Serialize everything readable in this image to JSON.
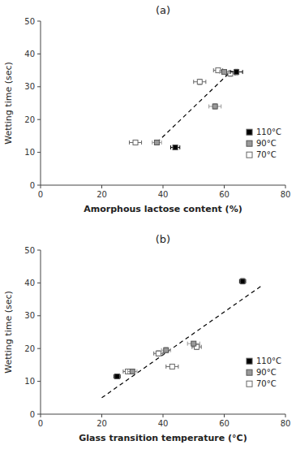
{
  "chart_data": [
    {
      "type": "scatter",
      "title": "(a)",
      "x_label": "Amorphous lactose content (%)",
      "y_label": "Wetting time (sec)",
      "xlim": [
        0,
        80
      ],
      "ylim": [
        0,
        50
      ],
      "xticks": [
        0,
        20,
        40,
        60,
        80
      ],
      "yticks": [
        0,
        10,
        20,
        30,
        40,
        50
      ],
      "grid": false,
      "legend": "lower right",
      "series": [
        {
          "name": "110°C",
          "color": "#000000",
          "marker": "square",
          "x": [
            44.0,
            64.0
          ],
          "values": [
            11.5,
            34.5
          ],
          "xerr": [
            1.5,
            2.0
          ],
          "yerr": [
            0.5,
            0.8
          ]
        },
        {
          "name": "90°C",
          "color": "#999999",
          "marker": "square",
          "x": [
            38.0,
            57.0,
            60.0
          ],
          "values": [
            13.0,
            24.0,
            34.5
          ],
          "xerr": [
            1.5,
            2.0,
            1.5
          ],
          "yerr": [
            0.5,
            0.8,
            0.5
          ]
        },
        {
          "name": "70°C",
          "color": "#666666",
          "marker": "open-square",
          "x": [
            31.0,
            52.0,
            58.0,
            62.0
          ],
          "values": [
            13.0,
            31.5,
            35.0,
            34.0
          ],
          "xerr": [
            2.0,
            2.0,
            1.5,
            1.5
          ],
          "yerr": [
            0.5,
            0.8,
            0.5,
            0.8
          ]
        },
        {
          "type": "line",
          "color": "#000000",
          "line_style": "dashed",
          "x": [
            38.0,
            62.0
          ],
          "values": [
            13.0,
            34.5
          ]
        }
      ]
    },
    {
      "type": "scatter",
      "title": "(b)",
      "x_label": "Glass transition temperature (°C)",
      "y_label": "Wetting time (sec)",
      "xlim": [
        0,
        80
      ],
      "ylim": [
        0,
        50
      ],
      "xticks": [
        0,
        20,
        40,
        60,
        80
      ],
      "yticks": [
        0,
        10,
        20,
        30,
        40,
        50
      ],
      "grid": false,
      "legend": "lower right",
      "series": [
        {
          "name": "110°C",
          "color": "#000000",
          "marker": "square",
          "x": [
            25.0,
            66.0
          ],
          "values": [
            11.5,
            40.5
          ],
          "xerr": [
            1.0,
            1.0
          ],
          "yerr": [
            0.5,
            0.8
          ]
        },
        {
          "name": "90°C",
          "color": "#999999",
          "marker": "square",
          "x": [
            30.0,
            41.0,
            50.0
          ],
          "values": [
            13.0,
            19.5,
            21.5
          ],
          "xerr": [
            1.5,
            1.5,
            2.0
          ],
          "yerr": [
            0.5,
            0.8,
            0.5
          ]
        },
        {
          "name": "70°C",
          "color": "#666666",
          "marker": "open-square",
          "x": [
            28.5,
            38.5,
            43.0,
            51.0
          ],
          "values": [
            13.0,
            18.5,
            14.5,
            20.5
          ],
          "xerr": [
            1.5,
            1.5,
            2.0,
            1.5
          ],
          "yerr": [
            0.5,
            0.8,
            0.5,
            0.8
          ]
        },
        {
          "type": "line",
          "color": "#000000",
          "line_style": "dashed",
          "x": [
            20.0,
            72.0
          ],
          "values": [
            5.0,
            39.0
          ]
        }
      ]
    }
  ]
}
